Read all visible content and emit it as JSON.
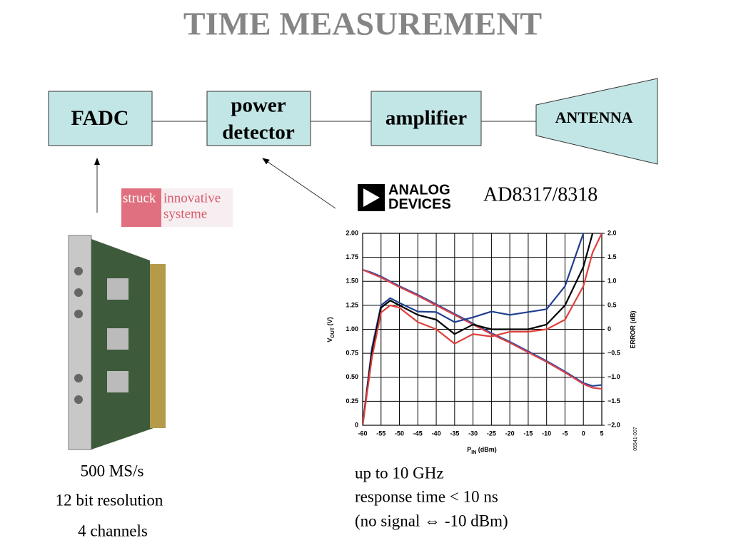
{
  "title": "TIME MEASUREMENT",
  "nodes": [
    {
      "lines": [
        "FADC"
      ]
    },
    {
      "lines": [
        "power",
        "detector"
      ]
    },
    {
      "lines": [
        "amplifier"
      ]
    },
    {
      "lines": [
        "ANTENNA"
      ]
    }
  ],
  "logos": {
    "struck": [
      "struck",
      "innovative",
      "systeme"
    ],
    "analog_devices": [
      "ANALOG",
      "DEVICES"
    ]
  },
  "part_number": "AD8317/8318",
  "fadc_specs": [
    "500 MS/s",
    "12 bit resolution",
    "4 channels"
  ],
  "detector_specs": [
    "up to 10 GHz",
    "response time < 10 ns",
    "(no signal ⇔ -10 dBm)"
  ],
  "chart_data": {
    "type": "line",
    "x_label": {
      "main": "P",
      "sub": "IN",
      "unit": " (dBm)"
    },
    "y_label": {
      "main": "V",
      "sub": "OUT",
      "unit": " (V)"
    },
    "y2_label": "ERROR (dB)",
    "annotation": "05541-007",
    "grid": true,
    "x": [
      -60,
      -57.5,
      -55,
      -52.5,
      -50,
      -45,
      -40,
      -35,
      -30,
      -25,
      -20,
      -15,
      -10,
      -5,
      0,
      2.5,
      5
    ],
    "xlim": [
      -60,
      5
    ],
    "xticks": [
      -60,
      -55,
      -50,
      -45,
      -40,
      -35,
      -30,
      -25,
      -20,
      -15,
      -10,
      -5,
      0,
      5
    ],
    "ylim": [
      0,
      2
    ],
    "yticks": [
      0,
      {
        "value": 0.25,
        "label": "0.25"
      },
      {
        "value": 0.5,
        "label": "0.50"
      },
      {
        "value": 0.75,
        "label": "0.75"
      },
      {
        "value": 1,
        "label": "1.00"
      },
      {
        "value": 1.25,
        "label": "1.25"
      },
      {
        "value": 1.5,
        "label": "1.50"
      },
      {
        "value": 1.75,
        "label": "1.75"
      },
      {
        "value": 2,
        "label": "2.00"
      }
    ],
    "y2lim": [
      -2,
      2
    ],
    "y2ticks": [
      {
        "value": -2,
        "label": "−2.0"
      },
      {
        "value": -1.5,
        "label": "−1.5"
      },
      {
        "value": -1,
        "label": "−1.0"
      },
      {
        "value": -0.5,
        "label": "−0.5"
      },
      0,
      0.5,
      {
        "value": 1,
        "label": "1.0"
      },
      1.5,
      {
        "value": 2,
        "label": "2.0"
      }
    ],
    "series": [
      {
        "color": "#2a4a9a",
        "values": [
          1.62,
          1.59,
          1.55,
          1.5,
          1.45,
          1.36,
          1.26,
          1.16,
          1.06,
          0.96,
          0.87,
          0.77,
          0.67,
          0.56,
          0.44,
          0.41,
          0.42
        ]
      },
      {
        "color": "#d9414e",
        "values": [
          1.62,
          1.58,
          1.54,
          1.49,
          1.44,
          1.35,
          1.25,
          1.15,
          1.05,
          0.95,
          0.86,
          0.76,
          0.66,
          0.55,
          0.43,
          0.39,
          0.38
        ]
      },
      {
        "color": "#1f3f8f",
        "axis": "y2",
        "values": [
          -2.0,
          -0.4,
          0.5,
          0.65,
          0.55,
          0.37,
          0.36,
          0.15,
          0.25,
          0.37,
          0.3,
          0.36,
          0.42,
          0.9,
          2.0,
          null,
          null
        ]
      },
      {
        "color": "#000000",
        "axis": "y2",
        "values": [
          -2.0,
          -0.5,
          0.45,
          0.6,
          0.5,
          0.3,
          0.2,
          -0.1,
          0.1,
          0.0,
          0.0,
          0.0,
          0.1,
          0.5,
          1.3,
          2.0,
          null
        ]
      },
      {
        "color": "#e0403a",
        "axis": "y2",
        "values": [
          -2.0,
          -0.6,
          0.35,
          0.5,
          0.45,
          0.15,
          0.0,
          -0.3,
          -0.1,
          -0.15,
          -0.05,
          -0.05,
          0.0,
          0.2,
          0.9,
          1.6,
          2.0
        ]
      }
    ]
  }
}
